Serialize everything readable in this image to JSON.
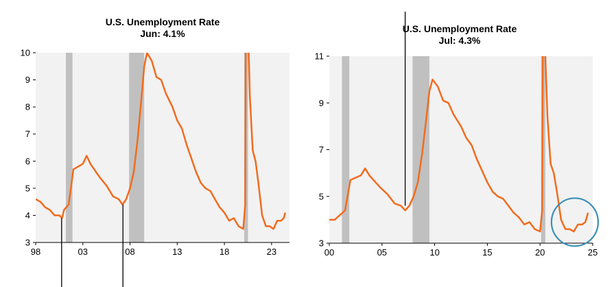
{
  "colors": {
    "line": "#F26B1D",
    "plot_bg": "#F2F2F2",
    "recession": "#C0C0C0",
    "highlight_circle": "#3B8FB5",
    "pointer": "#000000"
  },
  "chart_data": [
    {
      "type": "line",
      "title": "U.S. Unemployment Rate",
      "subtitle": "Jun: 4.1%",
      "xlabel": "",
      "ylabel": "",
      "xlim": [
        1998.0,
        2024.9
      ],
      "ylim": [
        3,
        10
      ],
      "yticks": [
        "3",
        "4",
        "5",
        "6",
        "7",
        "8",
        "9",
        "10"
      ],
      "xticks": [
        {
          "value": 1998,
          "label": "98"
        },
        {
          "value": 2003,
          "label": "03"
        },
        {
          "value": 2008,
          "label": "08"
        },
        {
          "value": 2013,
          "label": "13"
        },
        {
          "value": 2018,
          "label": "18"
        },
        {
          "value": 2023,
          "label": "23"
        }
      ],
      "recessions": [
        [
          2001.2,
          2001.9
        ],
        [
          2007.9,
          2009.5
        ],
        [
          2020.1,
          2020.5
        ]
      ],
      "annotations": [
        {
          "type": "pointer",
          "x": 2000.75,
          "y": 3.9
        },
        {
          "type": "pointer",
          "x": 2007.25,
          "y": 4.4
        }
      ],
      "series": [
        {
          "x": [
            1998.0,
            1998.5,
            1999.0,
            1999.5,
            2000.0,
            2000.5,
            2000.8,
            2001.0,
            2001.5,
            2002.0,
            2002.5,
            2003.0,
            2003.4,
            2003.8,
            2004.2,
            2004.8,
            2005.5,
            2006.2,
            2006.8,
            2007.2,
            2007.6,
            2008.0,
            2008.4,
            2008.8,
            2009.2,
            2009.5,
            2009.8,
            2010.3,
            2010.8,
            2011.3,
            2011.8,
            2012.5,
            2013.0,
            2013.5,
            2014.0,
            2014.5,
            2015.0,
            2015.5,
            2016.0,
            2016.5,
            2017.0,
            2017.5,
            2018.0,
            2018.5,
            2019.0,
            2019.5,
            2020.0,
            2020.2,
            2020.3,
            2020.5,
            2020.7,
            2021.0,
            2021.3,
            2021.6,
            2022.0,
            2022.4,
            2022.8,
            2023.2,
            2023.6,
            2024.0,
            2024.3,
            2024.45
          ],
          "y": [
            4.6,
            4.5,
            4.3,
            4.2,
            4.0,
            4.0,
            3.9,
            4.2,
            4.4,
            5.7,
            5.8,
            5.9,
            6.2,
            5.9,
            5.7,
            5.4,
            5.1,
            4.7,
            4.6,
            4.4,
            4.6,
            5.0,
            5.6,
            6.8,
            8.3,
            9.5,
            10.0,
            9.7,
            9.1,
            9.0,
            8.5,
            8.0,
            7.5,
            7.2,
            6.6,
            6.1,
            5.6,
            5.2,
            5.0,
            4.9,
            4.6,
            4.3,
            4.1,
            3.8,
            3.9,
            3.6,
            3.5,
            4.4,
            14.7,
            11.0,
            8.4,
            6.4,
            6.0,
            5.2,
            4.0,
            3.6,
            3.6,
            3.5,
            3.8,
            3.8,
            3.9,
            4.1
          ]
        }
      ]
    },
    {
      "type": "line",
      "title": "U.S. Unemployment Rate",
      "subtitle": "Jul: 4.3%",
      "xlabel": "",
      "ylabel": "",
      "xlim": [
        2000.0,
        2025.0
      ],
      "ylim": [
        3,
        11
      ],
      "yticks": [
        "3",
        "5",
        "7",
        "9",
        "11"
      ],
      "xticks": [
        {
          "value": 2000,
          "label": "00"
        },
        {
          "value": 2005,
          "label": "05"
        },
        {
          "value": 2010,
          "label": "10"
        },
        {
          "value": 2015,
          "label": "15"
        },
        {
          "value": 2020,
          "label": "20"
        },
        {
          "value": 2025,
          "label": "25"
        }
      ],
      "recessions": [
        [
          2001.2,
          2001.9
        ],
        [
          2007.9,
          2009.5
        ],
        [
          2020.1,
          2020.5
        ]
      ],
      "annotations": [
        {
          "type": "pointer",
          "x": 2007.2,
          "y": 4.6
        },
        {
          "type": "circle",
          "x": 2023.3,
          "y": 3.9
        }
      ],
      "series": [
        {
          "x": [
            2000.0,
            2000.5,
            2001.0,
            2001.5,
            2002.0,
            2002.5,
            2003.0,
            2003.4,
            2003.8,
            2004.2,
            2004.8,
            2005.5,
            2006.2,
            2006.8,
            2007.2,
            2007.6,
            2008.0,
            2008.4,
            2008.8,
            2009.2,
            2009.5,
            2009.8,
            2010.3,
            2010.8,
            2011.3,
            2011.8,
            2012.5,
            2013.0,
            2013.5,
            2014.0,
            2014.5,
            2015.0,
            2015.5,
            2016.0,
            2016.5,
            2017.0,
            2017.5,
            2018.0,
            2018.5,
            2019.0,
            2019.5,
            2020.0,
            2020.2,
            2020.3,
            2020.5,
            2020.7,
            2021.0,
            2021.3,
            2021.6,
            2022.0,
            2022.4,
            2022.8,
            2023.2,
            2023.6,
            2024.0,
            2024.3,
            2024.55
          ],
          "y": [
            4.0,
            4.0,
            4.2,
            4.4,
            5.7,
            5.8,
            5.9,
            6.2,
            5.9,
            5.7,
            5.4,
            5.1,
            4.7,
            4.6,
            4.4,
            4.6,
            5.0,
            5.6,
            6.8,
            8.3,
            9.5,
            10.0,
            9.7,
            9.1,
            9.0,
            8.5,
            8.0,
            7.5,
            7.2,
            6.6,
            6.1,
            5.6,
            5.2,
            5.0,
            4.9,
            4.6,
            4.3,
            4.1,
            3.8,
            3.9,
            3.6,
            3.5,
            4.4,
            14.7,
            11.0,
            8.4,
            6.4,
            6.0,
            5.2,
            4.0,
            3.6,
            3.6,
            3.5,
            3.8,
            3.8,
            3.9,
            4.3
          ]
        }
      ]
    }
  ]
}
